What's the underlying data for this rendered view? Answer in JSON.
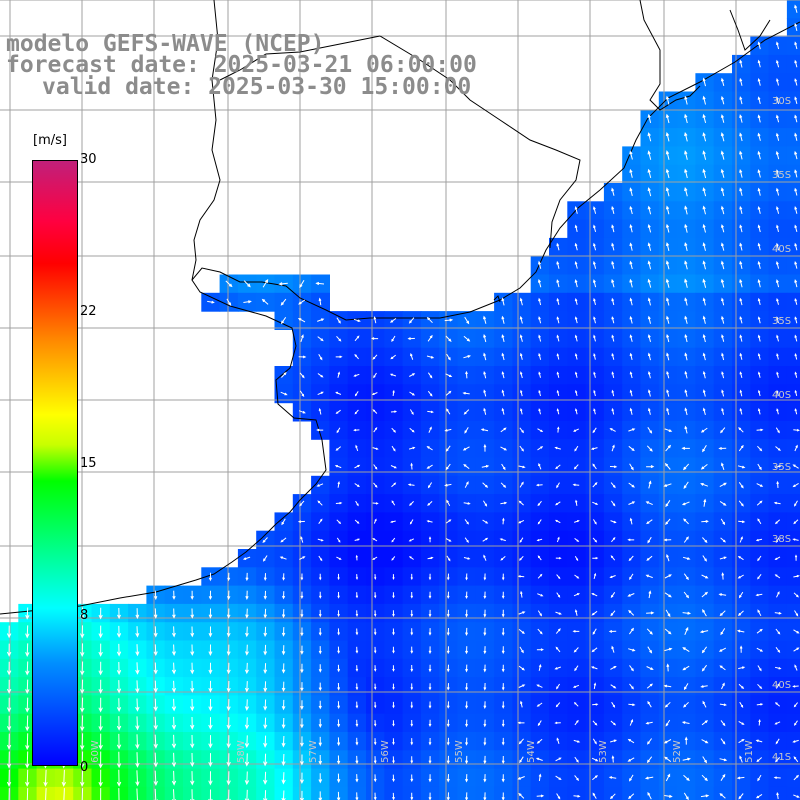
{
  "title": {
    "line1": "modelo GEFS-WAVE (NCEP)",
    "line2": "forecast date: 2025-03-21 06:00:00",
    "line3": "valid date: 2025-03-30 15:00:00"
  },
  "colorbar": {
    "unit": "[m/s]",
    "ticks": [
      "30",
      "22",
      "15",
      "8",
      "0"
    ],
    "tick_values": [
      30,
      22,
      15,
      8,
      0
    ],
    "range": [
      0,
      30
    ]
  },
  "grid_labels": {
    "lat": [
      "30S",
      "35S",
      "40S",
      "35S",
      "40S",
      "35S",
      "38S",
      "40S",
      "41S"
    ],
    "lon": [
      "60W",
      "58W",
      "57W",
      "56W",
      "55W",
      "54W",
      "53W",
      "52W",
      "51W"
    ]
  },
  "colors": {
    "land": "#ffffff",
    "coast": "#000000",
    "grid": "#a0a0a0",
    "arrow": "#ffffff",
    "title": "#8c8c8c"
  }
}
